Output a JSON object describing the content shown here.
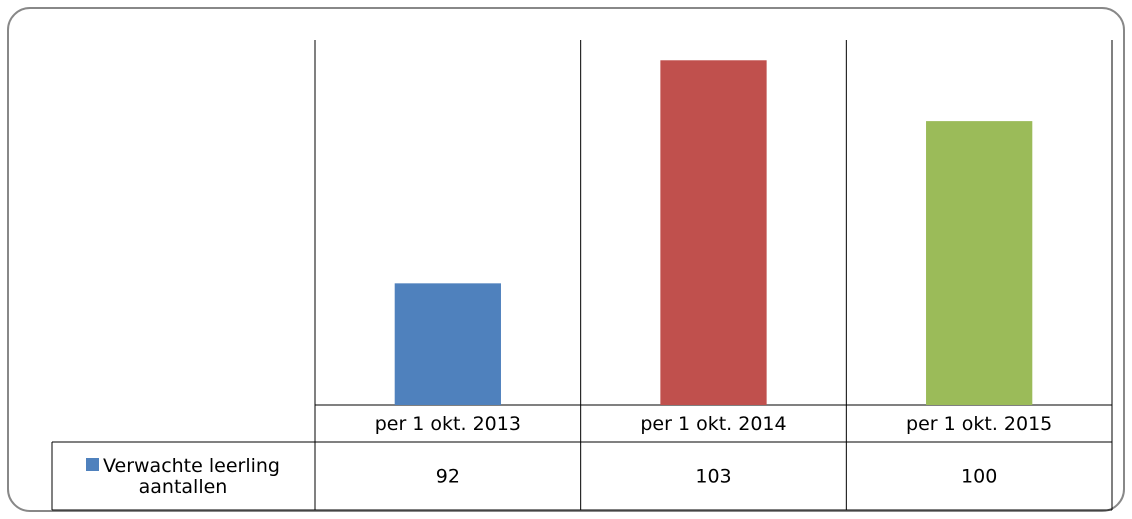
{
  "chart_data": {
    "type": "bar",
    "categories": [
      "per 1 okt. 2013",
      "per 1 okt. 2014",
      "per 1 okt. 2015"
    ],
    "series": [
      {
        "name": "Verwachte leerling aantallen",
        "color": "#4f81bd",
        "values": [
          92,
          103,
          100
        ]
      }
    ],
    "bar_colors": [
      "#4f81bd",
      "#c0504d",
      "#9bbb59"
    ],
    "ylim": [
      86,
      104
    ]
  }
}
